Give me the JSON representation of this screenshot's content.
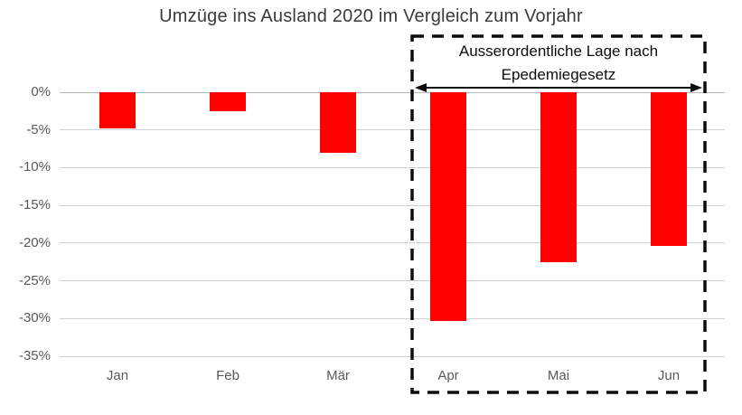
{
  "page": {
    "background": "#ffffff"
  },
  "chart_data": {
    "type": "bar",
    "title": "Umzüge ins Ausland 2020 im Vergleich zum Vorjahr",
    "categories": [
      "Jan",
      "Feb",
      "Mär",
      "Apr",
      "Mai",
      "Jun"
    ],
    "values": [
      -4.8,
      -2.5,
      -8,
      -30.3,
      -22.5,
      -20.4
    ],
    "unit": "%",
    "xlabel": "",
    "ylabel": "",
    "ylim": [
      -35,
      0
    ],
    "ytick_step": 5,
    "ytick_labels": [
      "0%",
      "-5%",
      "-10%",
      "-15%",
      "-20%",
      "-25%",
      "-30%",
      "-35%"
    ],
    "grid": true,
    "legend": "none",
    "bar_color": "#ff0000",
    "annotation": {
      "text_lines": [
        "Ausserordentliche Lage nach",
        "Epedemiegesetz"
      ],
      "covers_categories": [
        "Apr",
        "Mai",
        "Jun"
      ],
      "shape": "dashed-box",
      "arrow": "double-headed-horizontal"
    }
  },
  "colors": {
    "bar": "#ff0000",
    "title_text": "#3a3a3a",
    "axis_text": "#595959",
    "gridline": "#cbd1d6",
    "zero_line": "#b2bac2",
    "annotation_ink": "#0d0d0d"
  }
}
